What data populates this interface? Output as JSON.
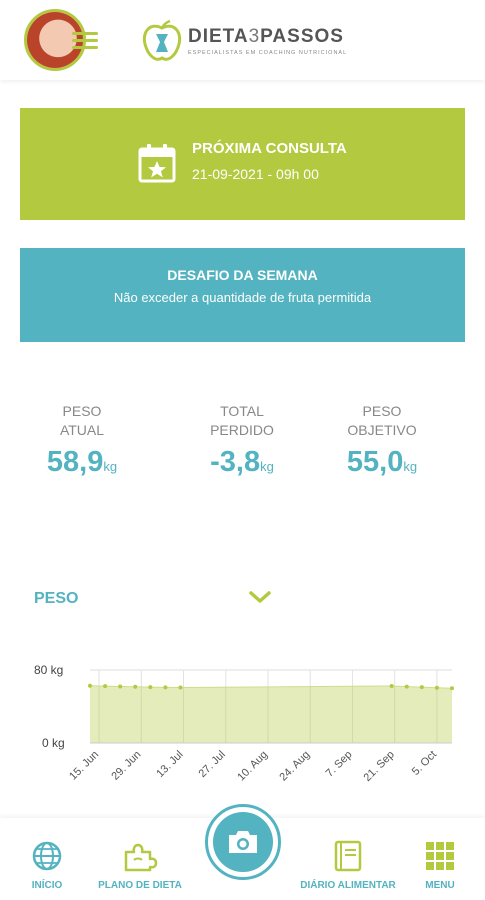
{
  "header": {
    "logo_title_main": "DIETA",
    "logo_title_three": "3",
    "logo_title_end": "PASSOS",
    "logo_subtitle": "ESPECIALISTAS EM COACHING NUTRICIONAL"
  },
  "appointment": {
    "title": "PRÓXIMA CONSULTA",
    "datetime": "21-09-2021 - 09h 00"
  },
  "challenge": {
    "title": "DESAFIO DA SEMANA",
    "text": "Não exceder a quantidade de fruta permitida"
  },
  "stats": [
    {
      "label_1": "PESO",
      "label_2": "ATUAL",
      "value": "58,9",
      "unit": "kg"
    },
    {
      "label_1": "TOTAL",
      "label_2": "PERDIDO",
      "value": "-3,8",
      "unit": "kg"
    },
    {
      "label_1": "PESO",
      "label_2": "OBJETIVO",
      "value": "55,0",
      "unit": "kg"
    }
  ],
  "selector": {
    "label": "PESO"
  },
  "chart_data": {
    "type": "area",
    "title": "",
    "xlabel": "",
    "ylabel": "",
    "ylim": [
      0,
      80
    ],
    "y_ticks": [
      "80 kg",
      "0 kg"
    ],
    "x_ticks": [
      "15. Jun",
      "29. Jun",
      "13. Jul",
      "27. Jul",
      "10. Aug",
      "24. Aug",
      "7. Sep",
      "21. Sep",
      "5. Oct"
    ],
    "x_tick_positions": [
      3,
      17,
      31,
      45,
      59,
      73,
      87,
      101,
      115
    ],
    "series": [
      {
        "color": "#b3c940",
        "x": [
          0,
          5,
          10,
          15,
          20,
          25,
          30,
          100,
          105,
          110,
          115,
          120
        ],
        "values": [
          62.8,
          62.3,
          61.9,
          61.6,
          61.3,
          61.0,
          60.8,
          62.5,
          61.8,
          61.2,
          60.6,
          60.0
        ]
      }
    ]
  },
  "nav": {
    "inicio": "INÍCIO",
    "plano": "PLANO DE DIETA",
    "diario": "DIÁRIO ALIMENTAR",
    "menu": "MENU"
  },
  "colors": {
    "green": "#b3c940",
    "blue": "#53b3c0"
  }
}
